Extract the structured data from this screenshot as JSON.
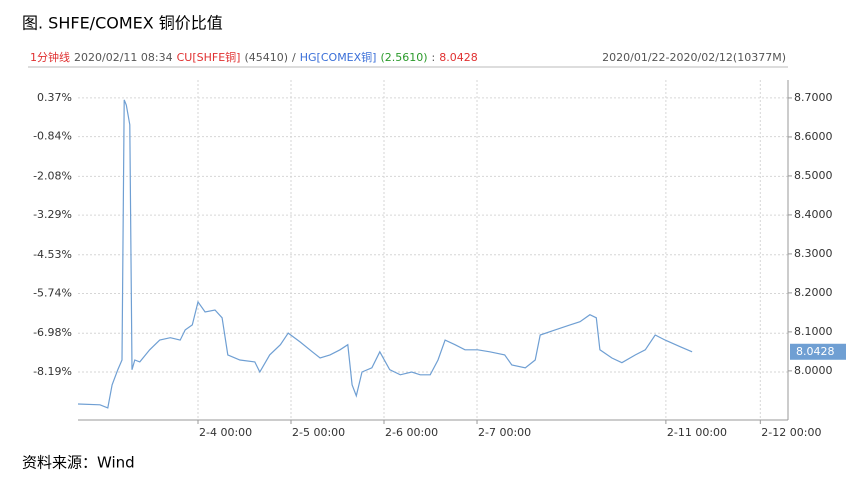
{
  "chart_data": {
    "type": "line",
    "title": "图. SHFE/COMEX 铜价比值",
    "info": [
      {
        "text": "1分钟线",
        "color": "#e03030"
      },
      {
        "text": "2020/02/11 08:34",
        "color": "#555555"
      },
      {
        "text": "CU[SHFE铜]",
        "color": "#e03030"
      },
      {
        "text": "(45410)",
        "color": "#555555"
      },
      {
        "text": "/",
        "color": "#555555"
      },
      {
        "text": "HG[COMEX铜]",
        "color": "#3a6fd8"
      },
      {
        "text": "(2.5610)",
        "color": "#2a9a2a"
      },
      {
        "text": ":",
        "color": "#555555"
      },
      {
        "text": "8.0428",
        "color": "#e03030"
      }
    ],
    "range": "2020/01/22-2020/02/12(10377M)",
    "source": "资料来源：Wind",
    "xlim": [
      0,
      100
    ],
    "xticks": [
      {
        "value": 16.9,
        "label": "2-4 00:00"
      },
      {
        "value": 30.0,
        "label": "2-5 00:00"
      },
      {
        "value": 43.1,
        "label": "2-6 00:00"
      },
      {
        "value": 56.2,
        "label": "2-7 00:00"
      },
      {
        "value": 82.8,
        "label": "2-11 00:00"
      },
      {
        "value": 96.1,
        "label": "2-12 00:00"
      }
    ],
    "ylim": [
      -9.69,
      0.93
    ],
    "yticks": [
      {
        "value": 0.37,
        "label": "0.37%"
      },
      {
        "value": -0.84,
        "label": "-0.84%"
      },
      {
        "value": -2.08,
        "label": "-2.08%"
      },
      {
        "value": -3.29,
        "label": "-3.29%"
      },
      {
        "value": -4.53,
        "label": "-4.53%"
      },
      {
        "value": -5.74,
        "label": "-5.74%"
      },
      {
        "value": -6.98,
        "label": "-6.98%"
      },
      {
        "value": -8.19,
        "label": "-8.19%"
      }
    ],
    "y2lim": [
      7.874,
      8.746
    ],
    "y2ticks": [
      {
        "value": 8.7,
        "label": "8.7000"
      },
      {
        "value": 8.6,
        "label": "8.6000"
      },
      {
        "value": 8.5,
        "label": "8.5000"
      },
      {
        "value": 8.4,
        "label": "8.4000"
      },
      {
        "value": 8.3,
        "label": "8.3000"
      },
      {
        "value": 8.2,
        "label": "8.2000"
      },
      {
        "value": 8.1,
        "label": "8.1000"
      },
      {
        "value": 8.0,
        "label": "8.0000"
      }
    ],
    "grid": true,
    "x": [
      0,
      3.1,
      4.2,
      4.8,
      5.6,
      6.2,
      6.5,
      6.8,
      7.3,
      7.6,
      8.0,
      8.7,
      10.1,
      11.5,
      13.0,
      14.4,
      15.1,
      16.1,
      16.9,
      17.9,
      19.3,
      20.3,
      21.1,
      22.8,
      24.9,
      25.6,
      27.0,
      28.5,
      29.6,
      31.3,
      33.0,
      34.1,
      35.5,
      36.9,
      38.0,
      38.6,
      39.2,
      40.0,
      41.4,
      42.5,
      43.9,
      45.4,
      47.0,
      48.2,
      49.6,
      50.7,
      51.7,
      53.1,
      54.5,
      56.3,
      58.0,
      60.1,
      61.1,
      63.0,
      64.4,
      65.1,
      67.2,
      69.3,
      70.7,
      72.1,
      73.0,
      73.5,
      75.2,
      76.6,
      78.5,
      79.9,
      81.3,
      82.7,
      84.8,
      86.5
    ],
    "series": [
      {
        "color": "#6f9fd3",
        "axis": "y2",
        "values": [
          7.915,
          7.913,
          7.905,
          7.964,
          8.003,
          8.028,
          8.695,
          8.682,
          8.631,
          8.003,
          8.028,
          8.023,
          8.054,
          8.079,
          8.085,
          8.079,
          8.105,
          8.118,
          8.177,
          8.151,
          8.156,
          8.136,
          8.041,
          8.028,
          8.023,
          7.997,
          8.041,
          8.067,
          8.097,
          8.074,
          8.049,
          8.033,
          8.041,
          8.054,
          8.067,
          7.964,
          7.936,
          7.997,
          8.008,
          8.049,
          8.003,
          7.99,
          7.997,
          7.99,
          7.99,
          8.028,
          8.079,
          8.067,
          8.054,
          8.054,
          8.049,
          8.041,
          8.015,
          8.008,
          8.028,
          8.092,
          8.105,
          8.118,
          8.126,
          8.144,
          8.136,
          8.054,
          8.033,
          8.021,
          8.041,
          8.054,
          8.092,
          8.079,
          8.062,
          8.049
        ]
      }
    ]
  }
}
